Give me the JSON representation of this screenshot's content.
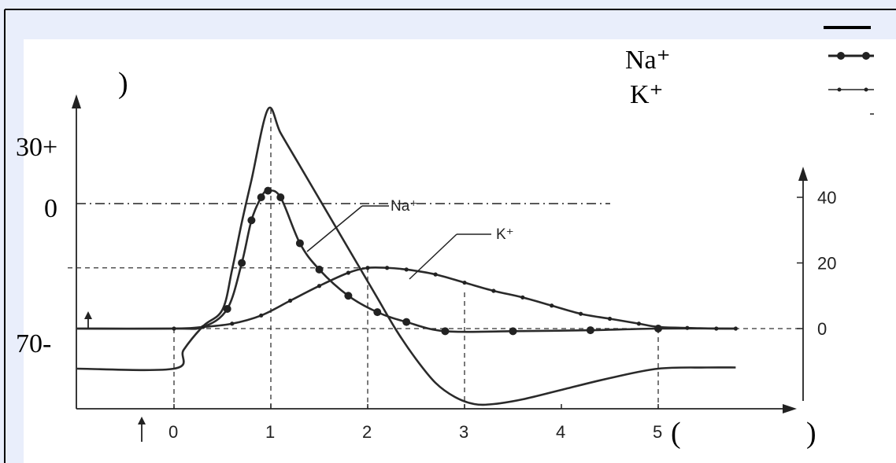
{
  "chart_data": {
    "type": "line",
    "title": "",
    "x_axis": {
      "range": [
        -1,
        6
      ],
      "ticks": [
        "0",
        "1",
        "2",
        "3",
        "4",
        "5"
      ],
      "tick_values": [
        0,
        1,
        2,
        3,
        4,
        5
      ]
    },
    "y_left": {
      "range": [
        -90,
        45
      ],
      "ticks": [
        "30+",
        "0",
        "70-"
      ],
      "tick_values": [
        30,
        0,
        -70
      ]
    },
    "y_right": {
      "range": [
        -12,
        48
      ],
      "ticks": [
        "40",
        "20",
        "0"
      ],
      "tick_values": [
        40,
        20,
        0
      ]
    },
    "series": [
      {
        "axis": "left",
        "x": [
          -1,
          0,
          0.1,
          0.3,
          0.5,
          0.6,
          0.7,
          0.8,
          0.97,
          1.1,
          1.3,
          1.5,
          1.7,
          1.9,
          2.1,
          2.3,
          2.5,
          2.7,
          2.9,
          3.1,
          3.3,
          3.6,
          4.0,
          4.5,
          5.0,
          5.5,
          5.8
        ],
        "y": [
          -70,
          -70,
          -62,
          -52,
          -45,
          -28,
          -8,
          10,
          40,
          30,
          16,
          2,
          -12,
          -26,
          -40,
          -54,
          -66,
          -76,
          -82,
          -85,
          -85,
          -83,
          -79,
          -74,
          -70,
          -69.5,
          -69.5
        ]
      },
      {
        "name": "Na+",
        "axis": "right",
        "x": [
          -1,
          0,
          0.3,
          0.55,
          0.7,
          0.8,
          0.9,
          0.97,
          1.1,
          1.3,
          1.5,
          1.8,
          2.1,
          2.4,
          2.8,
          3.5,
          4.3,
          5.0,
          5.8
        ],
        "y": [
          0,
          0,
          0.5,
          6,
          20,
          33,
          40,
          42,
          40,
          26,
          18,
          10,
          5,
          2,
          -0.8,
          -0.8,
          -0.5,
          0,
          0
        ]
      },
      {
        "name": "K+",
        "axis": "right",
        "x": [
          -1,
          0,
          0.3,
          0.6,
          0.9,
          1.2,
          1.5,
          1.8,
          2.0,
          2.2,
          2.4,
          2.7,
          3.0,
          3.3,
          3.6,
          3.9,
          4.2,
          4.5,
          4.8,
          5.0,
          5.3,
          5.6,
          5.8
        ],
        "y": [
          0,
          0,
          0.5,
          1.5,
          4,
          8.5,
          13,
          17,
          18.5,
          18.5,
          18,
          16.5,
          14,
          11.5,
          9.5,
          7,
          4.5,
          3,
          1.5,
          0.5,
          0.2,
          0,
          0
        ]
      }
    ],
    "reference_lines": {
      "y_left": [
        0
      ],
      "x": [
        0,
        1,
        2,
        3,
        5
      ],
      "y_right": [
        18.5,
        0
      ]
    },
    "annotations": [
      "Na⁺",
      "K⁺"
    ],
    "legend": {
      "placement": "top-right",
      "entries": [
        "Na⁺",
        "K⁺"
      ]
    },
    "fragments": [
      ")",
      "(",
      ")"
    ]
  }
}
